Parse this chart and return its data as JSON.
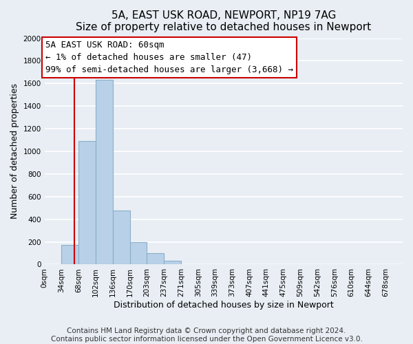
{
  "title": "5A, EAST USK ROAD, NEWPORT, NP19 7AG",
  "subtitle": "Size of property relative to detached houses in Newport",
  "xlabel": "Distribution of detached houses by size in Newport",
  "ylabel": "Number of detached properties",
  "bar_labels": [
    "0sqm",
    "34sqm",
    "68sqm",
    "102sqm",
    "136sqm",
    "170sqm",
    "203sqm",
    "237sqm",
    "271sqm",
    "305sqm",
    "339sqm",
    "373sqm",
    "407sqm",
    "441sqm",
    "475sqm",
    "509sqm",
    "542sqm",
    "576sqm",
    "610sqm",
    "644sqm",
    "678sqm"
  ],
  "bar_values": [
    0,
    170,
    1090,
    1630,
    480,
    200,
    100,
    35,
    0,
    0,
    0,
    0,
    0,
    0,
    0,
    0,
    0,
    0,
    0,
    0,
    0
  ],
  "bar_color": "#b8d0e8",
  "bar_edge_color": "#8aaec8",
  "vline_color": "#cc0000",
  "annotation_title": "5A EAST USK ROAD: 60sqm",
  "annotation_line1": "← 1% of detached houses are smaller (47)",
  "annotation_line2": "99% of semi-detached houses are larger (3,668) →",
  "annotation_box_facecolor": "#ffffff",
  "annotation_box_edgecolor": "#cc0000",
  "ylim": [
    0,
    2000
  ],
  "yticks": [
    0,
    200,
    400,
    600,
    800,
    1000,
    1200,
    1400,
    1600,
    1800,
    2000
  ],
  "footer1": "Contains HM Land Registry data © Crown copyright and database right 2024.",
  "footer2": "Contains public sector information licensed under the Open Government Licence v3.0.",
  "bg_color": "#e8eef4",
  "plot_bg_color": "#e8eef4",
  "grid_color": "#ffffff",
  "title_fontsize": 11,
  "label_fontsize": 9,
  "tick_fontsize": 7.5,
  "footer_fontsize": 7.5,
  "annotation_fontsize": 9
}
